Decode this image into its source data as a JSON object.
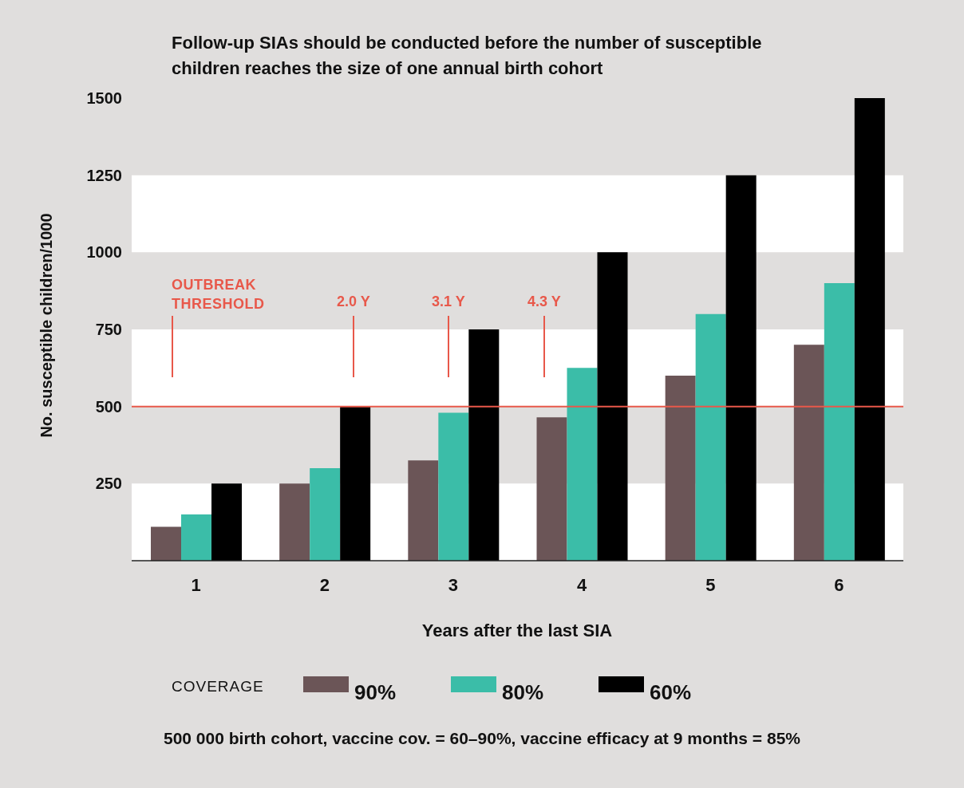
{
  "chart_data": {
    "type": "bar",
    "title": "Follow-up SIAs should be conducted before the number of susceptible children reaches the size of one annual birth cohort",
    "xlabel": "Years after the last SIA",
    "ylabel": "No. susceptible children/1000",
    "legend_title": "COVERAGE",
    "categories": [
      "1",
      "2",
      "3",
      "4",
      "5",
      "6"
    ],
    "series": [
      {
        "name": "90%",
        "color": "#6b5557",
        "values": [
          110,
          250,
          325,
          465,
          600,
          700
        ]
      },
      {
        "name": "80%",
        "color": "#3bbda8",
        "values": [
          150,
          300,
          480,
          625,
          800,
          900
        ]
      },
      {
        "name": "60%",
        "color": "#000000",
        "values": [
          250,
          500,
          750,
          1000,
          1250,
          1500
        ]
      }
    ],
    "ylim": [
      0,
      1500
    ],
    "yticks": [
      250,
      500,
      750,
      1000,
      1250,
      1500
    ],
    "bands": [
      {
        "axis": "y",
        "from": 0,
        "to": 250,
        "color": "#ffffff"
      },
      {
        "axis": "y",
        "from": 500,
        "to": 750,
        "color": "#ffffff"
      },
      {
        "axis": "y",
        "from": 1000,
        "to": 1250,
        "color": "#ffffff"
      }
    ],
    "ref_lines": [
      {
        "axis": "y",
        "value": 500,
        "label": "OUTBREAK THRESHOLD",
        "color": "#e8584a"
      }
    ],
    "annotations": [
      "2.0 Y",
      "3.1 Y",
      "4.3 Y",
      "500 000 birth cohort, vaccine cov. = 60–90%, vaccine efficacy at 9 months = 85%"
    ],
    "legend": "bottom"
  }
}
